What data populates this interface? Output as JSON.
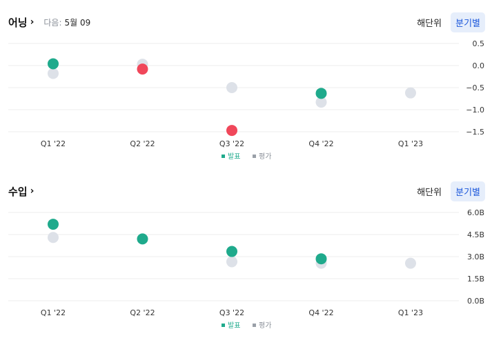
{
  "colors": {
    "beat": "#1faa8c",
    "miss": "#f0475a",
    "estimate": "#dde1e8",
    "grid": "#ececec",
    "accent": "#1a56db"
  },
  "tabs": {
    "annual": "해단위",
    "quarterly": "분기별"
  },
  "legend": {
    "actual": "발표",
    "estimate": "평가"
  },
  "earnings": {
    "title": "어닝",
    "chevron": "›",
    "next_label": "다음:",
    "next_value": "5월 09",
    "chart_data": {
      "type": "scatter",
      "categories": [
        "Q1 '22",
        "Q2 '22",
        "Q3 '22",
        "Q4 '22",
        "Q1 '23"
      ],
      "ylim": [
        -1.5,
        0.5
      ],
      "yticks": [
        "0.5",
        "0.0",
        "−0.5",
        "−1.0",
        "−1.5"
      ],
      "ytick_values": [
        0.5,
        0.0,
        -0.5,
        -1.0,
        -1.5
      ],
      "series": [
        {
          "name": "발표",
          "values": [
            0.04,
            -0.08,
            -1.47,
            -0.63,
            null
          ],
          "status": [
            "beat",
            "miss",
            "miss",
            "beat",
            null
          ]
        },
        {
          "name": "평가",
          "values": [
            -0.18,
            0.03,
            -0.5,
            -0.83,
            -0.62
          ]
        }
      ]
    }
  },
  "revenue": {
    "title": "수입",
    "chevron": "›",
    "chart_data": {
      "type": "scatter",
      "categories": [
        "Q1 '22",
        "Q2 '22",
        "Q3 '22",
        "Q4 '22",
        "Q1 '23"
      ],
      "ylim": [
        0,
        6.0
      ],
      "yticks": [
        "6.0B",
        "4.5B",
        "3.0B",
        "1.5B",
        "0.0B"
      ],
      "ytick_values": [
        6.0,
        4.5,
        3.0,
        1.5,
        0.0
      ],
      "series": [
        {
          "name": "발표",
          "values": [
            5.2,
            4.2,
            3.35,
            2.85,
            null
          ],
          "status": [
            "beat",
            "beat",
            "beat",
            "beat",
            null
          ]
        },
        {
          "name": "평가",
          "values": [
            4.3,
            null,
            2.65,
            2.55,
            2.55
          ]
        }
      ]
    }
  }
}
